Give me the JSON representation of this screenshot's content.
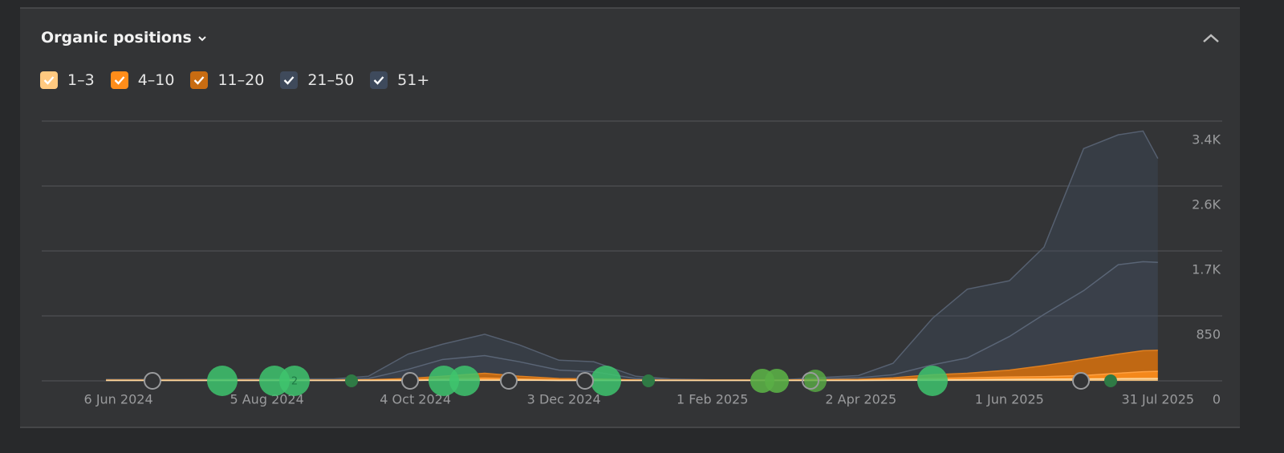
{
  "chart_data": {
    "type": "stacked-area",
    "title": "Organic positions",
    "x": [
      "2024-06-01",
      "2024-07-01",
      "2024-08-01",
      "2024-09-01",
      "2024-09-15",
      "2024-10-01",
      "2024-10-15",
      "2024-11-01",
      "2024-11-15",
      "2024-12-01",
      "2024-12-15",
      "2025-01-01",
      "2025-01-15",
      "2025-02-01",
      "2025-03-01",
      "2025-04-01",
      "2025-04-15",
      "2025-05-01",
      "2025-05-15",
      "2025-06-01",
      "2025-06-15",
      "2025-07-01",
      "2025-07-15",
      "2025-07-25",
      "2025-07-31"
    ],
    "series": [
      {
        "name": "1–3",
        "color": "#ffc980",
        "values": [
          5,
          5,
          5,
          5,
          5,
          5,
          10,
          10,
          10,
          5,
          5,
          5,
          5,
          5,
          5,
          5,
          8,
          10,
          15,
          20,
          22,
          25,
          28,
          30,
          30
        ]
      },
      {
        "name": "4–10",
        "color": "#ff8d1a",
        "values": [
          3,
          3,
          3,
          3,
          5,
          10,
          15,
          25,
          15,
          10,
          7,
          3,
          3,
          3,
          3,
          5,
          12,
          20,
          25,
          30,
          33,
          45,
          72,
          90,
          95
        ]
      },
      {
        "name": "11–20",
        "color": "#c86c12",
        "values": [
          2,
          2,
          2,
          2,
          5,
          15,
          35,
          65,
          35,
          15,
          13,
          4,
          2,
          2,
          2,
          10,
          20,
          50,
          60,
          90,
          145,
          210,
          250,
          275,
          275
        ]
      },
      {
        "name": "21–50",
        "color": "#3f4a5b",
        "values": [
          5,
          5,
          5,
          5,
          15,
          120,
          220,
          230,
          190,
          110,
          95,
          18,
          5,
          2,
          2,
          20,
          40,
          130,
          200,
          440,
          670,
          900,
          1170,
          1165,
          1150
        ]
      },
      {
        "name": "51+",
        "color": "#3e4a5c",
        "values": [
          5,
          5,
          10,
          10,
          30,
          200,
          200,
          280,
          220,
          130,
          130,
          30,
          10,
          3,
          3,
          30,
          150,
          610,
          900,
          730,
          880,
          1860,
          1700,
          1710,
          1360
        ]
      }
    ],
    "xlim": [
      "2024-05-06",
      "2025-08-26"
    ],
    "xticks": [
      {
        "value": "2024-06-06",
        "label": "6 Jun 2024"
      },
      {
        "value": "2024-08-05",
        "label": "5 Aug 2024"
      },
      {
        "value": "2024-10-04",
        "label": "4 Oct 2024"
      },
      {
        "value": "2024-12-03",
        "label": "3 Dec 2024"
      },
      {
        "value": "2025-02-01",
        "label": "1 Feb 2025"
      },
      {
        "value": "2025-04-02",
        "label": "2 Apr 2025"
      },
      {
        "value": "2025-06-01",
        "label": "1 Jun 2025"
      },
      {
        "value": "2025-07-31",
        "label": "31 Jul 2025"
      }
    ],
    "ylim": [
      0,
      3400
    ],
    "yticks": [
      0,
      850,
      {
        "value": 1700,
        "label": "1.7K"
      },
      {
        "value": 2550,
        "label": "2.6K"
      },
      {
        "value": 3400,
        "label": "3.4K"
      }
    ],
    "grid": true,
    "annotations": [
      "2"
    ]
  }
}
